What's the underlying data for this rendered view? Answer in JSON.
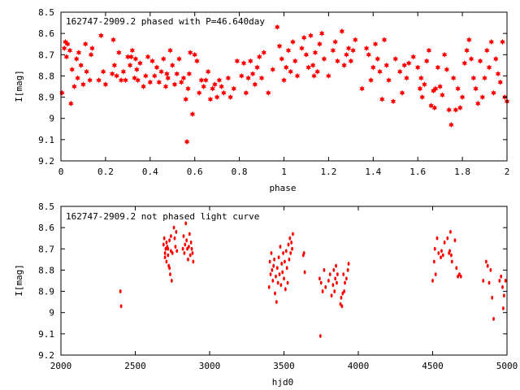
{
  "chart_data": [
    {
      "type": "scatter",
      "title": "162747-2909.2 phased with P=46.640day",
      "xlabel": "phase",
      "ylabel": "I[mag]",
      "xlim": [
        0,
        2
      ],
      "ylim": [
        9.2,
        8.5
      ],
      "y_inverted": true,
      "grid": false,
      "marker": "star",
      "color": "#ff0000",
      "xticks": [
        "0",
        "0.2",
        "0.4",
        "0.6",
        "0.8",
        "1",
        "1.2",
        "1.4",
        "1.6",
        "1.8",
        "2"
      ],
      "yticks": [
        "8.5",
        "8.6",
        "8.7",
        "8.8",
        "8.9",
        "9",
        "9.1",
        "9.2"
      ],
      "xtick_values": [
        0,
        0.2,
        0.4,
        0.6,
        0.8,
        1,
        1.2,
        1.4,
        1.6,
        1.8,
        2
      ],
      "ytick_values": [
        8.5,
        8.6,
        8.7,
        8.8,
        8.9,
        9,
        9.1,
        9.2
      ],
      "points": [
        [
          0.005,
          8.88
        ],
        [
          0.015,
          8.67
        ],
        [
          0.02,
          8.64
        ],
        [
          0.025,
          8.71
        ],
        [
          0.03,
          8.65
        ],
        [
          0.04,
          8.68
        ],
        [
          0.045,
          8.93
        ],
        [
          0.05,
          8.77
        ],
        [
          0.06,
          8.85
        ],
        [
          0.07,
          8.72
        ],
        [
          0.075,
          8.81
        ],
        [
          0.08,
          8.69
        ],
        [
          0.09,
          8.75
        ],
        [
          0.1,
          8.84
        ],
        [
          0.11,
          8.65
        ],
        [
          0.115,
          8.78
        ],
        [
          0.13,
          8.82
        ],
        [
          0.135,
          8.7
        ],
        [
          0.14,
          8.67
        ],
        [
          0.17,
          8.82
        ],
        [
          0.18,
          8.61
        ],
        [
          0.19,
          8.78
        ],
        [
          0.2,
          8.84
        ],
        [
          0.23,
          8.79
        ],
        [
          0.235,
          8.63
        ],
        [
          0.24,
          8.75
        ],
        [
          0.25,
          8.8
        ],
        [
          0.26,
          8.69
        ],
        [
          0.27,
          8.82
        ],
        [
          0.28,
          8.78
        ],
        [
          0.29,
          8.82
        ],
        [
          0.3,
          8.71
        ],
        [
          0.31,
          8.75
        ],
        [
          0.315,
          8.71
        ],
        [
          0.32,
          8.68
        ],
        [
          0.33,
          8.81
        ],
        [
          0.335,
          8.72
        ],
        [
          0.34,
          8.77
        ],
        [
          0.345,
          8.82
        ],
        [
          0.355,
          8.74
        ],
        [
          0.37,
          8.85
        ],
        [
          0.38,
          8.8
        ],
        [
          0.39,
          8.71
        ],
        [
          0.4,
          8.83
        ],
        [
          0.41,
          8.73
        ],
        [
          0.42,
          8.8
        ],
        [
          0.43,
          8.76
        ],
        [
          0.44,
          8.83
        ],
        [
          0.45,
          8.78
        ],
        [
          0.46,
          8.72
        ],
        [
          0.47,
          8.85
        ],
        [
          0.475,
          8.79
        ],
        [
          0.48,
          8.81
        ],
        [
          0.49,
          8.68
        ],
        [
          0.5,
          8.75
        ],
        [
          0.51,
          8.84
        ],
        [
          0.52,
          8.79
        ],
        [
          0.53,
          8.72
        ],
        [
          0.54,
          8.83
        ],
        [
          0.55,
          8.81
        ],
        [
          0.56,
          8.91
        ],
        [
          0.565,
          9.11
        ],
        [
          0.57,
          8.86
        ],
        [
          0.575,
          8.79
        ],
        [
          0.58,
          8.69
        ],
        [
          0.59,
          8.98
        ],
        [
          0.6,
          8.7
        ],
        [
          0.61,
          8.73
        ],
        [
          0.62,
          8.88
        ],
        [
          0.63,
          8.82
        ],
        [
          0.64,
          8.85
        ],
        [
          0.65,
          8.82
        ],
        [
          0.66,
          8.78
        ],
        [
          0.67,
          8.91
        ],
        [
          0.68,
          8.86
        ],
        [
          0.69,
          8.84
        ],
        [
          0.7,
          8.9
        ],
        [
          0.71,
          8.82
        ],
        [
          0.72,
          8.85
        ],
        [
          0.73,
          8.88
        ],
        [
          0.75,
          8.81
        ],
        [
          0.76,
          8.9
        ],
        [
          0.775,
          8.86
        ],
        [
          0.79,
          8.73
        ],
        [
          0.81,
          8.8
        ],
        [
          0.82,
          8.74
        ],
        [
          0.83,
          8.88
        ],
        [
          0.84,
          8.81
        ],
        [
          0.85,
          8.73
        ],
        [
          0.86,
          8.79
        ],
        [
          0.87,
          8.84
        ],
        [
          0.88,
          8.76
        ],
        [
          0.89,
          8.71
        ],
        [
          0.9,
          8.81
        ],
        [
          0.91,
          8.69
        ],
        [
          0.93,
          8.88
        ],
        [
          0.95,
          8.77
        ],
        [
          0.97,
          8.57
        ],
        [
          0.98,
          8.66
        ],
        [
          0.99,
          8.72
        ],
        [
          1.0,
          8.82
        ],
        [
          1.01,
          8.76
        ],
        [
          1.02,
          8.68
        ],
        [
          1.03,
          8.78
        ],
        [
          1.04,
          8.64
        ],
        [
          1.05,
          8.73
        ],
        [
          1.06,
          8.8
        ],
        [
          1.08,
          8.67
        ],
        [
          1.09,
          8.62
        ],
        [
          1.1,
          8.7
        ],
        [
          1.11,
          8.76
        ],
        [
          1.12,
          8.61
        ],
        [
          1.13,
          8.75
        ],
        [
          1.135,
          8.8
        ],
        [
          1.14,
          8.69
        ],
        [
          1.15,
          8.78
        ],
        [
          1.16,
          8.65
        ],
        [
          1.17,
          8.6
        ],
        [
          1.18,
          8.72
        ],
        [
          1.2,
          8.8
        ],
        [
          1.22,
          8.68
        ],
        [
          1.23,
          8.64
        ],
        [
          1.24,
          8.73
        ],
        [
          1.26,
          8.59
        ],
        [
          1.27,
          8.75
        ],
        [
          1.28,
          8.7
        ],
        [
          1.29,
          8.67
        ],
        [
          1.3,
          8.73
        ],
        [
          1.31,
          8.68
        ],
        [
          1.32,
          8.63
        ],
        [
          1.35,
          8.86
        ],
        [
          1.37,
          8.67
        ],
        [
          1.38,
          8.7
        ],
        [
          1.39,
          8.82
        ],
        [
          1.4,
          8.76
        ],
        [
          1.41,
          8.65
        ],
        [
          1.42,
          8.72
        ],
        [
          1.43,
          8.78
        ],
        [
          1.44,
          8.91
        ],
        [
          1.45,
          8.63
        ],
        [
          1.46,
          8.75
        ],
        [
          1.47,
          8.82
        ],
        [
          1.49,
          8.92
        ],
        [
          1.5,
          8.72
        ],
        [
          1.52,
          8.78
        ],
        [
          1.53,
          8.88
        ],
        [
          1.54,
          8.75
        ],
        [
          1.55,
          8.81
        ],
        [
          1.56,
          8.74
        ],
        [
          1.58,
          8.71
        ],
        [
          1.6,
          8.76
        ],
        [
          1.61,
          8.86
        ],
        [
          1.615,
          8.81
        ],
        [
          1.62,
          8.9
        ],
        [
          1.63,
          8.84
        ],
        [
          1.64,
          8.73
        ],
        [
          1.65,
          8.68
        ],
        [
          1.66,
          8.94
        ],
        [
          1.67,
          8.87
        ],
        [
          1.675,
          8.95
        ],
        [
          1.68,
          8.86
        ],
        [
          1.69,
          8.76
        ],
        [
          1.7,
          8.85
        ],
        [
          1.71,
          8.89
        ],
        [
          1.72,
          8.7
        ],
        [
          1.73,
          8.77
        ],
        [
          1.74,
          8.96
        ],
        [
          1.75,
          9.03
        ],
        [
          1.76,
          8.81
        ],
        [
          1.77,
          8.96
        ],
        [
          1.78,
          8.86
        ],
        [
          1.79,
          8.95
        ],
        [
          1.8,
          8.9
        ],
        [
          1.81,
          8.74
        ],
        [
          1.82,
          8.68
        ],
        [
          1.83,
          8.63
        ],
        [
          1.84,
          8.72
        ],
        [
          1.85,
          8.81
        ],
        [
          1.86,
          8.86
        ],
        [
          1.87,
          8.93
        ],
        [
          1.88,
          8.73
        ],
        [
          1.89,
          8.9
        ],
        [
          1.9,
          8.81
        ],
        [
          1.91,
          8.68
        ],
        [
          1.92,
          8.76
        ],
        [
          1.93,
          8.64
        ],
        [
          1.94,
          8.88
        ],
        [
          1.95,
          8.72
        ],
        [
          1.96,
          8.79
        ],
        [
          1.97,
          8.83
        ],
        [
          1.98,
          8.64
        ],
        [
          1.99,
          8.9
        ],
        [
          2.0,
          8.92
        ]
      ]
    },
    {
      "type": "scatter",
      "title": "162747-2909.2 not phased light curve",
      "xlabel": "hjd0",
      "ylabel": "I[mag]",
      "xlim": [
        2000,
        5000
      ],
      "ylim": [
        9.2,
        8.5
      ],
      "y_inverted": true,
      "grid": false,
      "marker": "dot",
      "color": "#ff0000",
      "xticks": [
        "2000",
        "2500",
        "3000",
        "3500",
        "4000",
        "4500",
        "5000"
      ],
      "yticks": [
        "8.5",
        "8.6",
        "8.7",
        "8.8",
        "8.9",
        "9",
        "9.1",
        "9.2"
      ],
      "xtick_values": [
        2000,
        2500,
        3000,
        3500,
        4000,
        4500,
        5000
      ],
      "ytick_values": [
        8.5,
        8.6,
        8.7,
        8.8,
        8.9,
        9,
        9.1,
        9.2
      ],
      "points": [
        [
          2400,
          8.9
        ],
        [
          2405,
          8.97
        ],
        [
          2690,
          8.68
        ],
        [
          2695,
          8.65
        ],
        [
          2700,
          8.72
        ],
        [
          2705,
          8.7
        ],
        [
          2710,
          8.76
        ],
        [
          2715,
          8.69
        ],
        [
          2720,
          8.73
        ],
        [
          2725,
          8.78
        ],
        [
          2730,
          8.66
        ],
        [
          2735,
          8.82
        ],
        [
          2740,
          8.71
        ],
        [
          2745,
          8.85
        ],
        [
          2700,
          8.74
        ],
        [
          2710,
          8.67
        ],
        [
          2720,
          8.7
        ],
        [
          2730,
          8.79
        ],
        [
          2740,
          8.64
        ],
        [
          2750,
          8.72
        ],
        [
          2760,
          8.6
        ],
        [
          2765,
          8.65
        ],
        [
          2770,
          8.69
        ],
        [
          2775,
          8.62
        ],
        [
          2780,
          8.71
        ],
        [
          2820,
          8.7
        ],
        [
          2825,
          8.64
        ],
        [
          2830,
          8.72
        ],
        [
          2835,
          8.68
        ],
        [
          2840,
          8.58
        ],
        [
          2845,
          8.66
        ],
        [
          2850,
          8.7
        ],
        [
          2855,
          8.75
        ],
        [
          2860,
          8.69
        ],
        [
          2865,
          8.63
        ],
        [
          2870,
          8.73
        ],
        [
          2875,
          8.67
        ],
        [
          2880,
          8.7
        ],
        [
          2885,
          8.72
        ],
        [
          2890,
          8.76
        ],
        [
          3400,
          8.88
        ],
        [
          3405,
          8.76
        ],
        [
          3410,
          8.82
        ],
        [
          3415,
          8.72
        ],
        [
          3420,
          8.8
        ],
        [
          3425,
          8.85
        ],
        [
          3430,
          8.78
        ],
        [
          3435,
          8.75
        ],
        [
          3440,
          8.91
        ],
        [
          3445,
          8.83
        ],
        [
          3450,
          8.95
        ],
        [
          3455,
          8.79
        ],
        [
          3460,
          8.86
        ],
        [
          3465,
          8.74
        ],
        [
          3470,
          8.82
        ],
        [
          3475,
          8.69
        ],
        [
          3480,
          8.87
        ],
        [
          3485,
          8.77
        ],
        [
          3490,
          8.81
        ],
        [
          3495,
          8.72
        ],
        [
          3500,
          8.84
        ],
        [
          3505,
          8.76
        ],
        [
          3510,
          8.89
        ],
        [
          3515,
          8.71
        ],
        [
          3520,
          8.79
        ],
        [
          3525,
          8.86
        ],
        [
          3530,
          8.68
        ],
        [
          3535,
          8.75
        ],
        [
          3540,
          8.65
        ],
        [
          3545,
          8.72
        ],
        [
          3550,
          8.67
        ],
        [
          3555,
          8.7
        ],
        [
          3560,
          8.63
        ],
        [
          3630,
          8.73
        ],
        [
          3635,
          8.72
        ],
        [
          3640,
          8.81
        ],
        [
          3740,
          8.84
        ],
        [
          3745,
          9.11
        ],
        [
          3750,
          8.86
        ],
        [
          3760,
          8.9
        ],
        [
          3770,
          8.8
        ],
        [
          3780,
          8.88
        ],
        [
          3800,
          8.85
        ],
        [
          3810,
          8.82
        ],
        [
          3820,
          8.92
        ],
        [
          3830,
          8.87
        ],
        [
          3835,
          8.8
        ],
        [
          3840,
          8.9
        ],
        [
          3845,
          8.84
        ],
        [
          3850,
          8.78
        ],
        [
          3855,
          8.86
        ],
        [
          3860,
          8.82
        ],
        [
          3880,
          8.96
        ],
        [
          3885,
          8.93
        ],
        [
          3890,
          8.97
        ],
        [
          3895,
          8.91
        ],
        [
          3900,
          8.82
        ],
        [
          3905,
          8.9
        ],
        [
          3910,
          8.86
        ],
        [
          3920,
          8.84
        ],
        [
          3930,
          8.8
        ],
        [
          3935,
          8.77
        ],
        [
          4500,
          8.85
        ],
        [
          4510,
          8.76
        ],
        [
          4515,
          8.7
        ],
        [
          4520,
          8.82
        ],
        [
          4530,
          8.65
        ],
        [
          4540,
          8.72
        ],
        [
          4555,
          8.74
        ],
        [
          4560,
          8.71
        ],
        [
          4570,
          8.73
        ],
        [
          4580,
          8.67
        ],
        [
          4600,
          8.65
        ],
        [
          4610,
          8.72
        ],
        [
          4615,
          8.71
        ],
        [
          4620,
          8.62
        ],
        [
          4625,
          8.73
        ],
        [
          4630,
          8.76
        ],
        [
          4650,
          8.66
        ],
        [
          4660,
          8.79
        ],
        [
          4670,
          8.83
        ],
        [
          4680,
          8.82
        ],
        [
          4690,
          8.83
        ],
        [
          4840,
          8.85
        ],
        [
          4860,
          8.76
        ],
        [
          4870,
          8.78
        ],
        [
          4880,
          8.86
        ],
        [
          4890,
          8.8
        ],
        [
          4900,
          8.93
        ],
        [
          4910,
          9.03
        ],
        [
          4950,
          8.85
        ],
        [
          4960,
          8.83
        ],
        [
          4970,
          8.88
        ],
        [
          4975,
          8.98
        ],
        [
          4980,
          8.92
        ],
        [
          4990,
          8.85
        ]
      ]
    }
  ]
}
